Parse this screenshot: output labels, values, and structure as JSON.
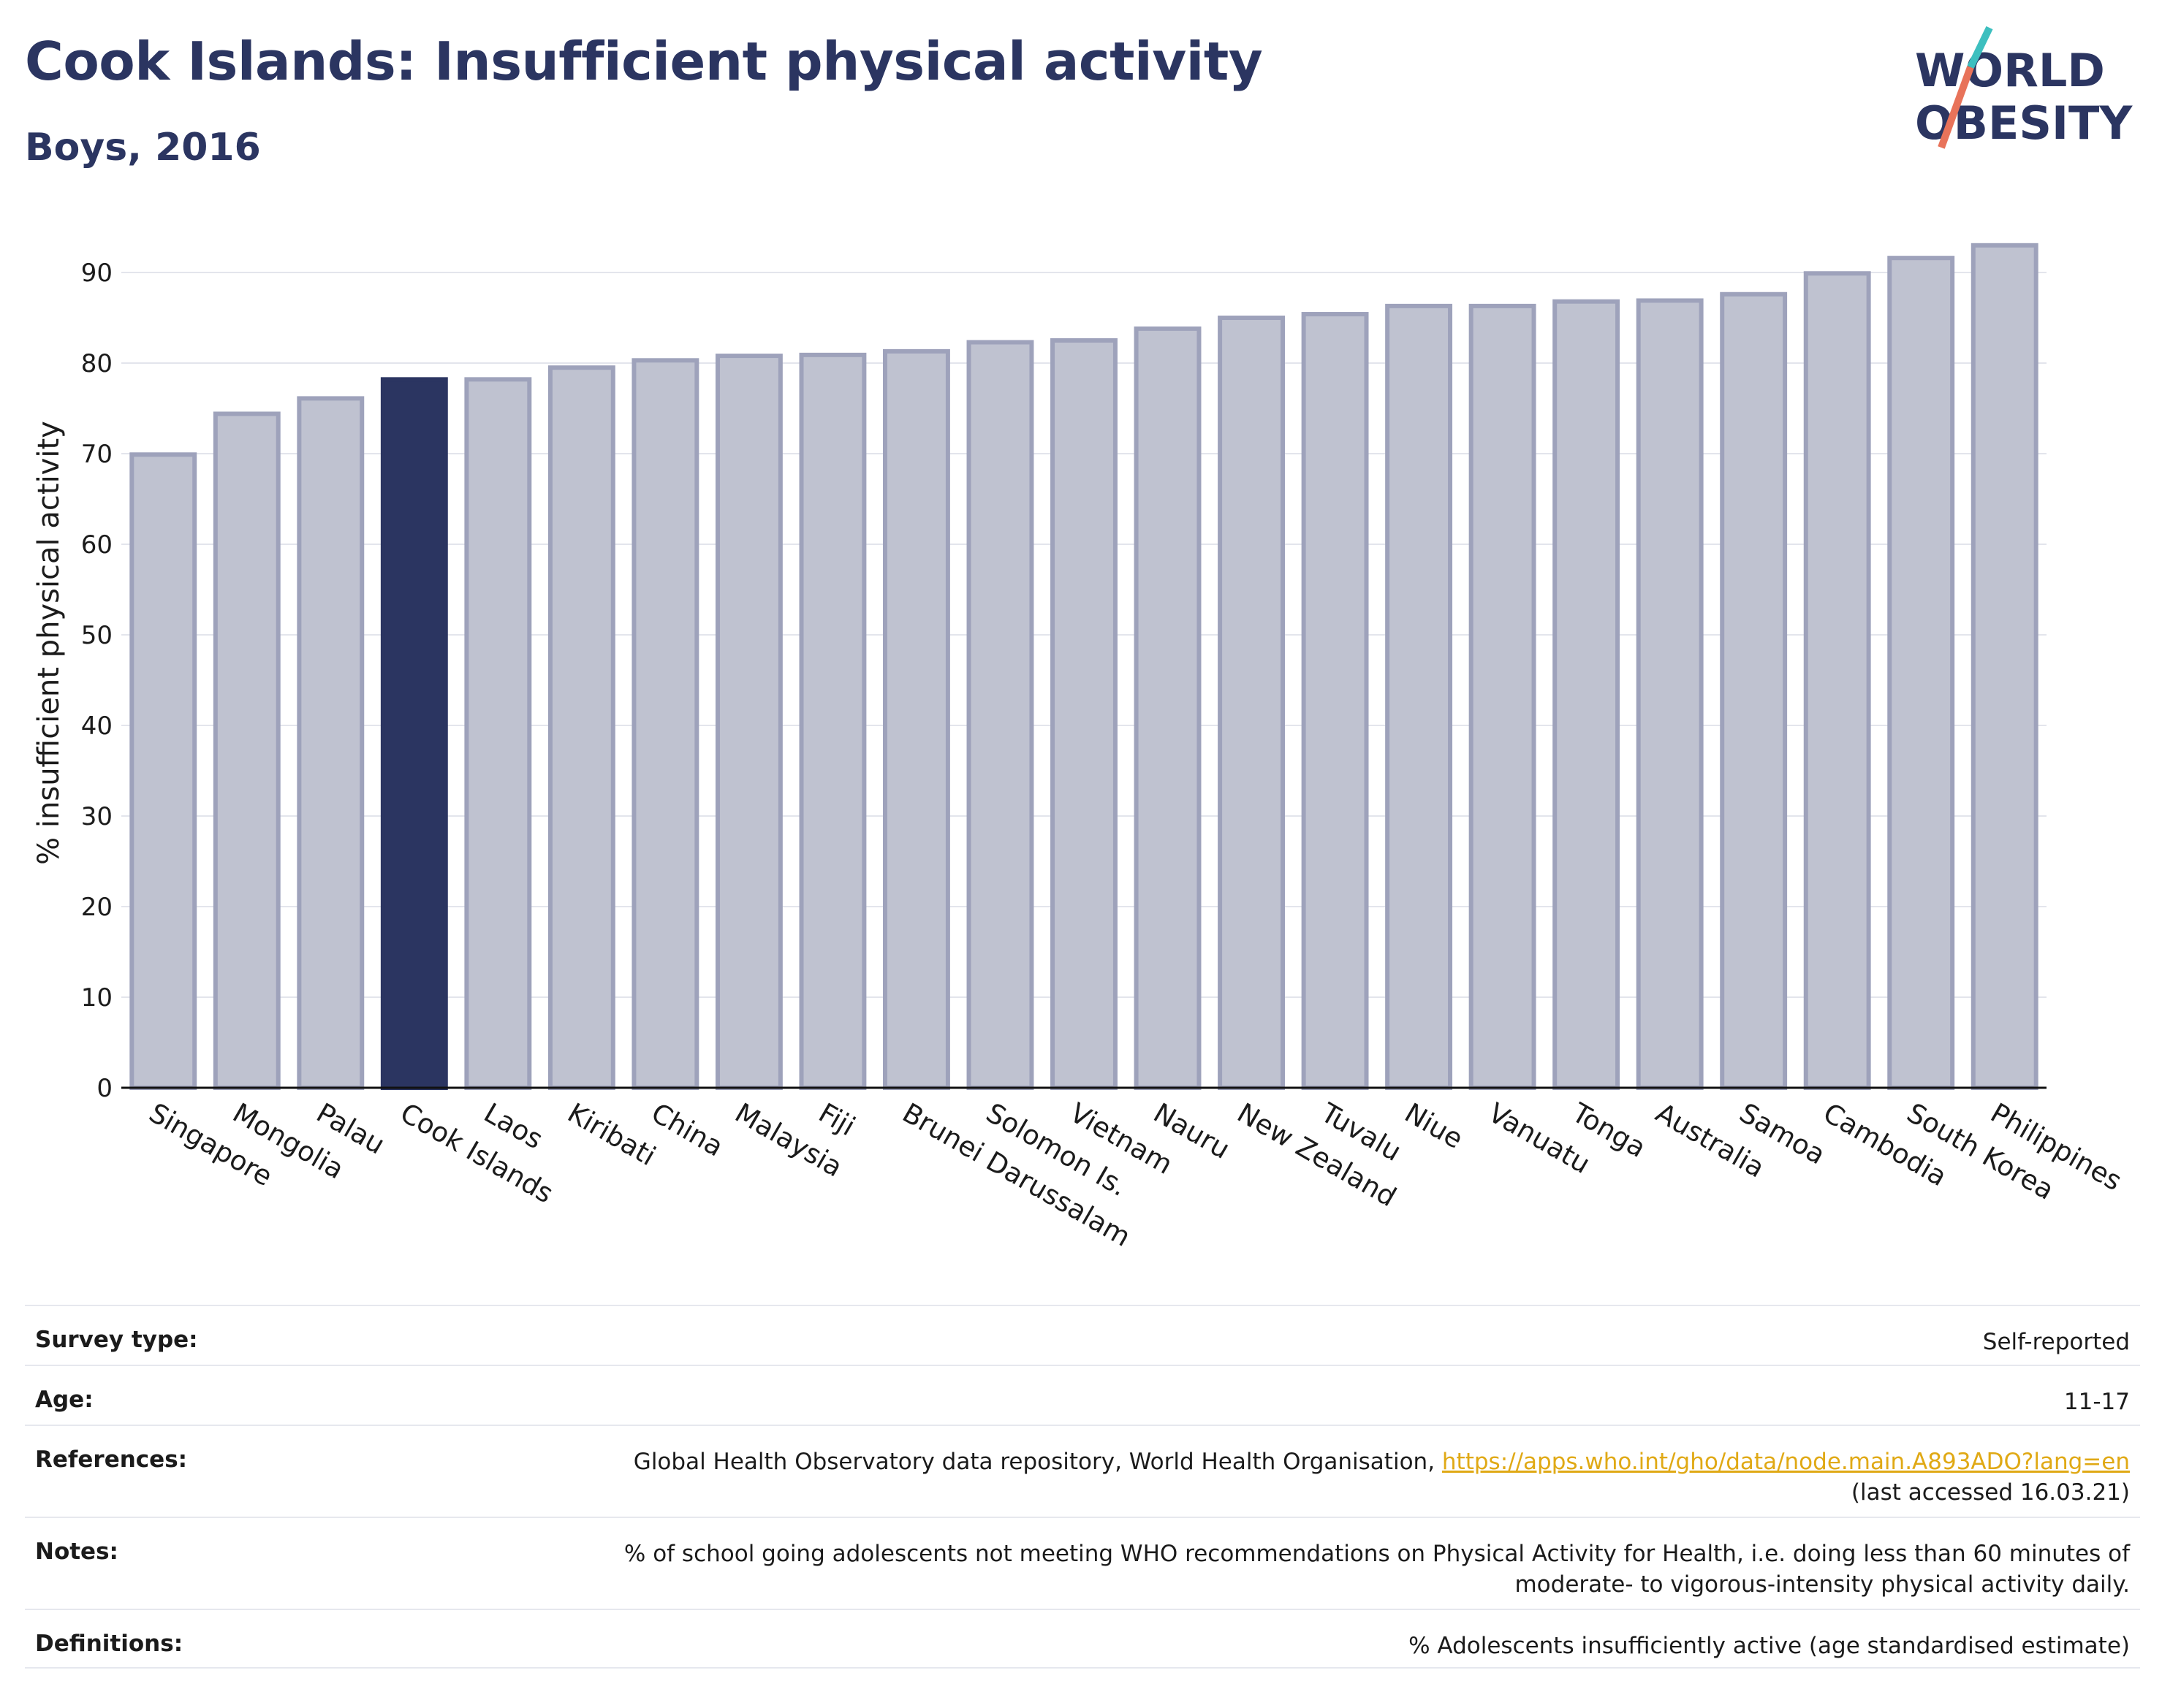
{
  "header": {
    "title": "Cook Islands: Insufficient physical activity",
    "subtitle": "Boys, 2016"
  },
  "logo": {
    "line1": "WORLD",
    "line2": "OBESITY",
    "colors": {
      "text": "#2b3561",
      "slash_top": "#3dbfbf",
      "slash_bottom": "#e8735a"
    }
  },
  "colors": {
    "highlight_bar": "#2b3561",
    "bar_fill": "#bfc2d0",
    "bar_stroke": "#9ea2bb",
    "grid": "#e3e5ec",
    "axis": "#111111"
  },
  "chart_data": {
    "type": "bar",
    "title": "Cook Islands: Insufficient physical activity",
    "subtitle": "Boys, 2016",
    "xlabel": "",
    "ylabel": "% insufficient physical activity",
    "ylim": [
      0,
      95
    ],
    "yticks": [
      0,
      10,
      20,
      30,
      40,
      50,
      60,
      70,
      80,
      90
    ],
    "grid": true,
    "highlight": "Cook Islands",
    "categories": [
      "Singapore",
      "Mongolia",
      "Palau",
      "Cook Islands",
      "Laos",
      "Kiribati",
      "China",
      "Malaysia",
      "Fiji",
      "Brunei Darussalam",
      "Solomon Is.",
      "Vietnam",
      "Nauru",
      "New Zealand",
      "Tuvalu",
      "Niue",
      "Vanuatu",
      "Tonga",
      "Australia",
      "Samoa",
      "Cambodia",
      "South Korea",
      "Philippines"
    ],
    "values": [
      69.9,
      74.4,
      76.1,
      78.2,
      78.2,
      79.5,
      80.3,
      80.8,
      80.9,
      81.3,
      82.3,
      82.5,
      83.8,
      85.0,
      85.4,
      86.3,
      86.3,
      86.8,
      86.9,
      87.6,
      89.9,
      91.6,
      93.0
    ]
  },
  "meta": {
    "rows": [
      {
        "label": "Survey type:",
        "value": "Self-reported"
      },
      {
        "label": "Age:",
        "value": "11-17"
      },
      {
        "label": "References:",
        "value": "Global Health Observatory data repository, World Health Organisation, ",
        "link": "https://apps.who.int/gho/data/node.main.A893ADO?lang=en",
        "value2": "(last accessed 16.03.21)"
      },
      {
        "label": "Notes:",
        "value": "% of school going adolescents not meeting WHO recommendations on Physical Activity for Health, i.e. doing less than 60 minutes of",
        "value2": "moderate- to vigorous-intensity physical activity daily."
      },
      {
        "label": "Definitions:",
        "value": "% Adolescents insufficiently active (age standardised estimate)"
      }
    ]
  }
}
